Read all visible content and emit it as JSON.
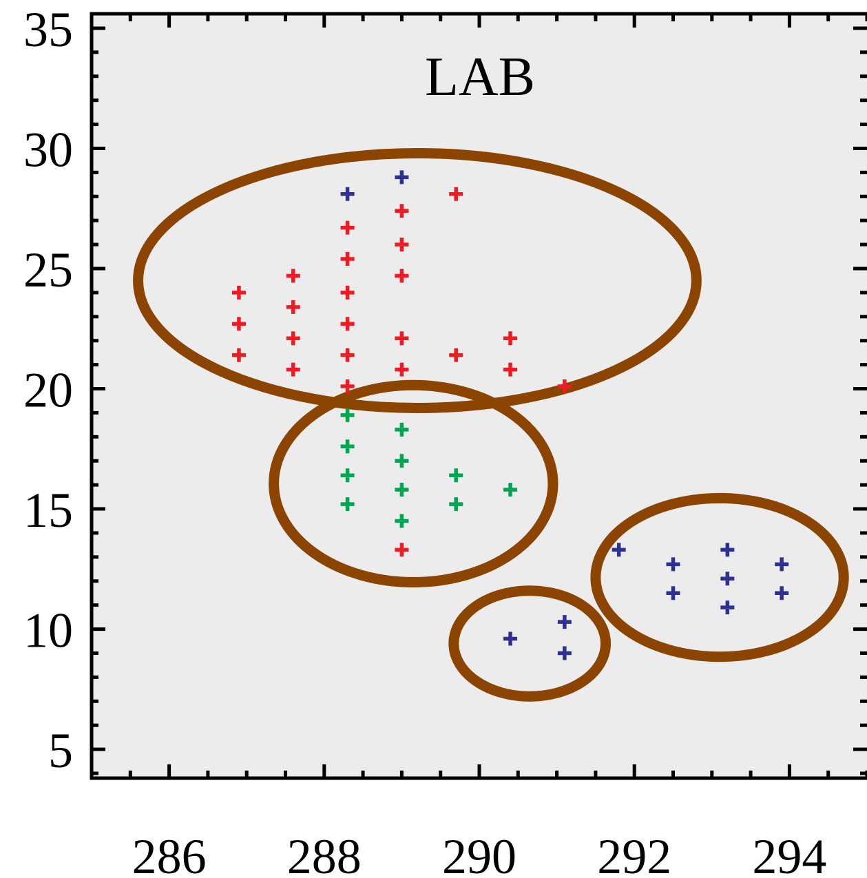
{
  "chart_data": {
    "type": "scatter",
    "title": "",
    "annotation": "LAB",
    "xlabel": "",
    "ylabel": "",
    "xlim": [
      285,
      295
    ],
    "ylim": [
      3.8,
      35.6
    ],
    "x_ticks": [
      286,
      288,
      290,
      292,
      294
    ],
    "y_ticks": [
      5,
      10,
      15,
      20,
      25,
      30,
      35
    ],
    "grid": false,
    "background": "#ececec",
    "marker": "plus",
    "series": [
      {
        "color": "#ed1c24",
        "points": [
          [
            286.9,
            24.0
          ],
          [
            286.9,
            22.7
          ],
          [
            286.9,
            21.4
          ],
          [
            287.6,
            24.7
          ],
          [
            287.6,
            23.4
          ],
          [
            287.6,
            22.1
          ],
          [
            287.6,
            20.8
          ],
          [
            288.3,
            26.7
          ],
          [
            288.3,
            25.4
          ],
          [
            288.3,
            24.0
          ],
          [
            288.3,
            22.7
          ],
          [
            288.3,
            21.4
          ],
          [
            288.3,
            20.1
          ],
          [
            289.0,
            27.4
          ],
          [
            289.0,
            26.0
          ],
          [
            289.0,
            24.7
          ],
          [
            289.0,
            22.1
          ],
          [
            289.0,
            20.8
          ],
          [
            289.0,
            13.3
          ],
          [
            289.7,
            28.1
          ],
          [
            289.7,
            21.4
          ],
          [
            290.4,
            22.1
          ],
          [
            290.4,
            20.8
          ],
          [
            291.1,
            20.1
          ]
        ]
      },
      {
        "color": "#00a651",
        "points": [
          [
            288.3,
            18.9
          ],
          [
            288.3,
            17.6
          ],
          [
            288.3,
            16.4
          ],
          [
            288.3,
            15.2
          ],
          [
            289.0,
            18.3
          ],
          [
            289.0,
            17.0
          ],
          [
            289.0,
            15.8
          ],
          [
            289.0,
            14.5
          ],
          [
            289.7,
            16.4
          ],
          [
            289.7,
            15.2
          ],
          [
            290.4,
            15.8
          ]
        ]
      },
      {
        "color": "#2e3192",
        "points": [
          [
            288.3,
            28.1
          ],
          [
            289.0,
            28.8
          ],
          [
            290.4,
            9.6
          ],
          [
            291.1,
            10.3
          ],
          [
            291.1,
            9.0
          ],
          [
            291.8,
            13.3
          ],
          [
            292.5,
            12.7
          ],
          [
            292.5,
            11.5
          ],
          [
            293.2,
            13.3
          ],
          [
            293.2,
            12.1
          ],
          [
            293.2,
            10.9
          ],
          [
            293.9,
            12.7
          ],
          [
            293.9,
            11.5
          ]
        ]
      }
    ],
    "clusters": [
      {
        "color": "#8b4500",
        "center": [
          289.2,
          24.5
        ],
        "radius": [
          3.6,
          5.3
        ]
      },
      {
        "color": "#8b4500",
        "center": [
          289.15,
          16.05
        ],
        "radius": [
          1.8,
          4.1
        ]
      },
      {
        "color": "#8b4500",
        "center": [
          290.65,
          9.4
        ],
        "radius": [
          0.98,
          2.2
        ]
      },
      {
        "color": "#8b4500",
        "center": [
          293.1,
          12.15
        ],
        "radius": [
          1.6,
          3.3
        ]
      }
    ]
  }
}
